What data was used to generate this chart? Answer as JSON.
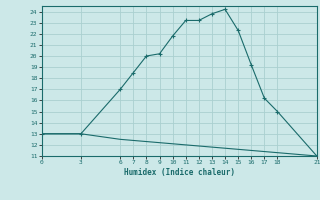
{
  "xlabel": "Humidex (Indice chaleur)",
  "ylabel": "",
  "bg_color": "#cce8e8",
  "grid_color": "#aad0d0",
  "line_color": "#1a6b6b",
  "upper_x": [
    0,
    3,
    6,
    7,
    8,
    9,
    10,
    11,
    12,
    13,
    14,
    15,
    16,
    17,
    18,
    21
  ],
  "upper_y": [
    13,
    13,
    17,
    18.5,
    20,
    20.2,
    21.8,
    23.2,
    23.2,
    23.8,
    24.2,
    22.3,
    19.2,
    16.2,
    15.0,
    11.0
  ],
  "lower_x": [
    0,
    3,
    6,
    7,
    8,
    9,
    10,
    11,
    12,
    13,
    14,
    15,
    16,
    17,
    18,
    21
  ],
  "lower_y": [
    13,
    13,
    12.5,
    12.4,
    12.3,
    12.2,
    12.1,
    12.0,
    11.9,
    11.8,
    11.7,
    11.6,
    11.5,
    11.4,
    11.3,
    11.0
  ],
  "xticks": [
    0,
    3,
    6,
    7,
    8,
    9,
    10,
    11,
    12,
    13,
    14,
    15,
    16,
    17,
    18,
    21
  ],
  "yticks": [
    11,
    12,
    13,
    14,
    15,
    16,
    17,
    18,
    19,
    20,
    21,
    22,
    23,
    24
  ],
  "xlim": [
    0,
    21
  ],
  "ylim": [
    11,
    24.5
  ]
}
